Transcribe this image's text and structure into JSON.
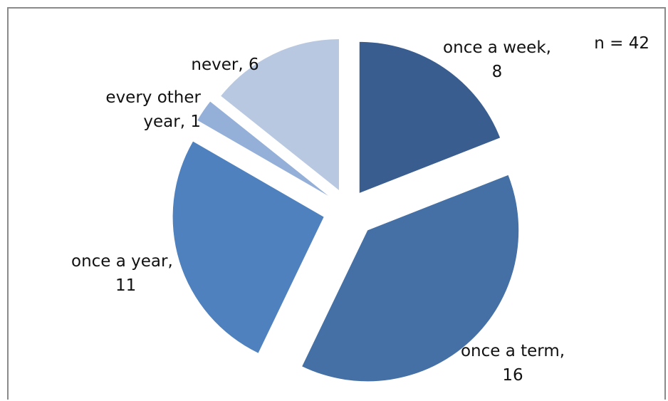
{
  "chart_data": {
    "type": "pie",
    "title": "",
    "annotation": "n = 42",
    "total": 42,
    "exploded": true,
    "slices": [
      {
        "label": "once a week,",
        "value": 8,
        "value_text": "8",
        "color": "#3A5D8F"
      },
      {
        "label": "once a term,",
        "value": 16,
        "value_text": "16",
        "color": "#4470A5"
      },
      {
        "label": "once a year,",
        "value": 11,
        "value_text": "11",
        "color": "#4E81BD"
      },
      {
        "label": "every other year,",
        "value": 1,
        "value_text": "1",
        "color": "#95B0D8"
      },
      {
        "label": "never,",
        "value": 6,
        "value_text": "6",
        "color": "#B9C8E1"
      }
    ]
  }
}
